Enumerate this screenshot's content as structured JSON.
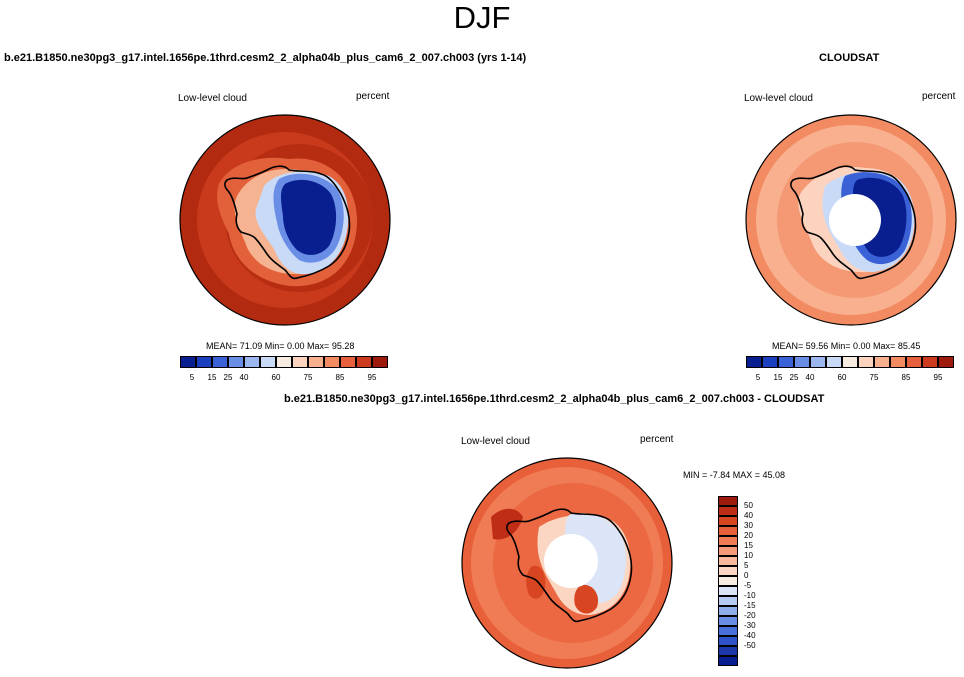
{
  "main_title": "DJF",
  "panels": {
    "model": {
      "header": "b.e21.B1850.ne30pg3_g17.intel.1656pe.1thrd.cesm2_2_alpha04b_plus_cam6_2_007.ch003 (yrs 1-14)",
      "left_label": "Low-level cloud",
      "right_label": "percent",
      "stats": "MEAN=  71.09  Min=   0.00  Max=  95.28"
    },
    "obs": {
      "header": "CLOUDSAT",
      "left_label": "Low-level cloud",
      "right_label": "percent",
      "stats": "MEAN=  59.56  Min=   0.00  Max=  85.45"
    },
    "diff": {
      "header": "b.e21.B1850.ne30pg3_g17.intel.1656pe.1thrd.cesm2_2_alpha04b_plus_cam6_2_007.ch003 - CLOUDSAT",
      "left_label": "Low-level cloud",
      "right_label": "percent",
      "stats": "MIN =  -7.84 MAX =  45.08"
    }
  },
  "colorbar_main": {
    "colors": [
      "#0a1f8f",
      "#1c3fbf",
      "#3a62d6",
      "#6a8ee6",
      "#9cb7f0",
      "#c9daf7",
      "#f7ece2",
      "#fcd3bf",
      "#f8b08f",
      "#f28a62",
      "#e7603e",
      "#cc3a1f",
      "#9e1a0d"
    ],
    "labels": [
      "5",
      "15",
      "25",
      "40",
      "60",
      "75",
      "85",
      "95"
    ]
  },
  "colorbar_diff": {
    "colors": [
      "#9e1a0d",
      "#bf2d16",
      "#d74621",
      "#e8603a",
      "#f07c55",
      "#f59a78",
      "#f8b89b",
      "#fbd6c2",
      "#f7ece2",
      "#dbe5f7",
      "#b6cbf1",
      "#8eade8",
      "#6a8ee6",
      "#4a70db",
      "#2f52c8",
      "#1b37aa",
      "#0a1f8f"
    ],
    "labels": [
      "50",
      "40",
      "30",
      "20",
      "15",
      "10",
      "5",
      "0",
      "-5",
      "-10",
      "-15",
      "-20",
      "-30",
      "-40",
      "-50"
    ]
  }
}
